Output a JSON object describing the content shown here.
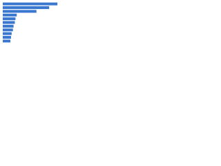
{
  "chart_data": {
    "type": "bar",
    "orientation": "horizontal",
    "values": [
      86,
      73,
      53,
      22,
      20,
      19,
      17,
      16,
      14,
      13,
      12
    ],
    "color": "#3a78d0",
    "xlim": [
      0,
      100
    ]
  }
}
